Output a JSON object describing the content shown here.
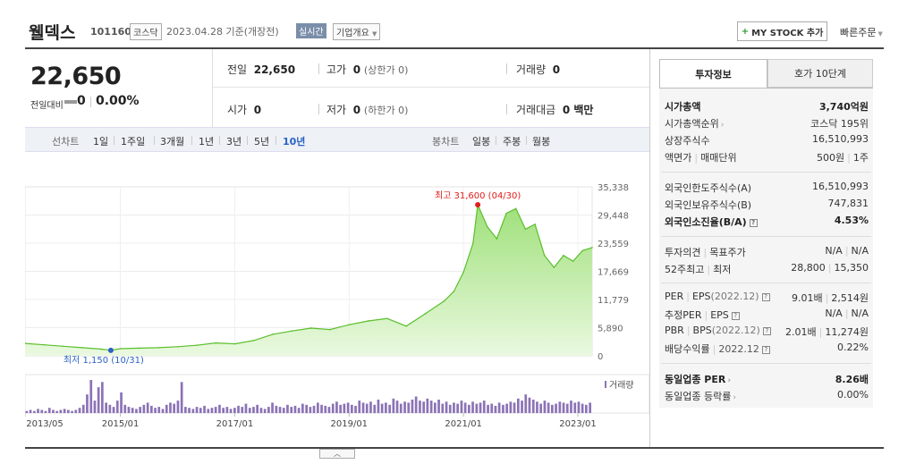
{
  "header": {
    "name": "웰덱스",
    "code": "101160",
    "market": "코스닥",
    "date_text": "2023.04.28  기준(개장전)",
    "realtime_badge": "실시간",
    "company_button": "기업개요",
    "mystock_button": "MY STOCK 추가",
    "quick_order": "빠른주문"
  },
  "quote": {
    "current_price": "22,650",
    "change_label": "전일대비",
    "change_value": "0",
    "change_pct": "0.00%",
    "prev_close_label": "전일",
    "prev_close": "22,650",
    "high_label": "고가",
    "high": "0",
    "upper_limit": "(상한가 0)",
    "volume_label": "거래량",
    "volume": "0",
    "open_label": "시가",
    "open": "0",
    "low_label": "저가",
    "low": "0",
    "lower_limit": "(하한가 0)",
    "amount_label": "거래대금",
    "amount": "0 백만"
  },
  "toolbar": {
    "line_label": "선차트",
    "periods": [
      "1일",
      "1주일",
      "3개월",
      "1년",
      "3년",
      "5년",
      "10년"
    ],
    "active_period": "10년",
    "candle_label": "봉차트",
    "candles": [
      "일봉",
      "주봉",
      "월봉"
    ]
  },
  "tabs": {
    "invest": "투자정보",
    "hoga": "호가 10단계"
  },
  "invest_info": {
    "market_cap_label": "시가총액",
    "market_cap": "3,740억원",
    "rank_label": "시가총액순위",
    "rank": "코스닥 195위",
    "shares_label": "상장주식수",
    "shares": "16,510,993",
    "par_label": "액면가",
    "unit_label": "매매단위",
    "par": "500원",
    "unit": "1주",
    "foreign_limit_label": "외국인한도주식수(A)",
    "foreign_limit": "16,510,993",
    "foreign_hold_label": "외국인보유주식수(B)",
    "foreign_hold": "747,831",
    "foreign_rate_label": "외국인소진율(B/A)",
    "foreign_rate": "4.53%",
    "opinion_label": "투자의견",
    "target_label": "목표주가",
    "opinion": "N/A",
    "target": "N/A",
    "w52_high_label": "52주최고",
    "w52_low_label": "최저",
    "w52_high": "28,800",
    "w52_low": "15,350",
    "per_label": "PER",
    "eps_label": "EPS",
    "per_period": "(2022.12)",
    "per": "9.01배",
    "eps": "2,514원",
    "est_per_label": "추정PER",
    "est_eps_label": "EPS",
    "est_per": "N/A",
    "est_eps": "N/A",
    "pbr_label": "PBR",
    "bps_label": "BPS",
    "pbr_period": "(2022.12)",
    "pbr": "2.01배",
    "bps": "11,274원",
    "div_label": "배당수익률",
    "div_period": "2022.12",
    "div": "0.22%",
    "sector_per_label": "동일업종 PER",
    "sector_per": "8.26배",
    "sector_chg_label": "동일업종 등락률",
    "sector_chg": "0.00%"
  },
  "chart_data": {
    "type": "area",
    "y_ticks": [
      "35,338",
      "29,448",
      "23,559",
      "17,669",
      "11,779",
      "5,890",
      "0"
    ],
    "ylim": [
      0,
      35338
    ],
    "x_ticks": [
      "2013/05",
      "2015/01",
      "2017/01",
      "2019/01",
      "2021/01",
      "2023/01"
    ],
    "x": [
      "2013/05",
      "2013/09",
      "2014/01",
      "2014/05",
      "2014/09",
      "2014/11",
      "2015/01",
      "2015/05",
      "2015/09",
      "2016/01",
      "2016/05",
      "2016/09",
      "2017/01",
      "2017/05",
      "2017/09",
      "2018/01",
      "2018/05",
      "2018/09",
      "2019/01",
      "2019/05",
      "2019/09",
      "2020/01",
      "2020/05",
      "2020/09",
      "2020/11",
      "2021/01",
      "2021/03",
      "2021/04",
      "2021/06",
      "2021/08",
      "2021/10",
      "2021/12",
      "2022/02",
      "2022/04",
      "2022/06",
      "2022/08",
      "2022/10",
      "2022/12",
      "2023/02",
      "2023/04"
    ],
    "values": [
      2600,
      2300,
      2000,
      1700,
      1400,
      1150,
      1500,
      1600,
      1700,
      1900,
      2200,
      2700,
      2500,
      3200,
      4500,
      5200,
      5800,
      5500,
      6500,
      7300,
      7800,
      6200,
      8800,
      11500,
      13500,
      17500,
      23500,
      31600,
      27000,
      24500,
      29800,
      30800,
      26500,
      27500,
      21000,
      18500,
      21000,
      19800,
      22000,
      22650
    ],
    "annotations": {
      "high_label": "최고 31,600 (04/30)",
      "low_label": "최저 1,150 (10/31)"
    },
    "volume_legend": "거래량",
    "volume_bars": [
      2,
      3,
      2,
      4,
      3,
      2,
      5,
      3,
      2,
      3,
      4,
      3,
      2,
      3,
      5,
      8,
      18,
      32,
      12,
      25,
      30,
      10,
      8,
      6,
      12,
      20,
      8,
      6,
      5,
      4,
      6,
      8,
      10,
      7,
      5,
      6,
      4,
      8,
      10,
      9,
      12,
      30,
      6,
      5,
      4,
      6,
      5,
      7,
      4,
      5,
      6,
      8,
      5,
      6,
      4,
      5,
      7,
      6,
      9,
      5,
      6,
      8,
      5,
      4,
      6,
      10,
      7,
      6,
      5,
      8,
      6,
      7,
      5,
      9,
      8,
      6,
      7,
      10,
      8,
      7,
      6,
      9,
      11,
      8,
      9,
      10,
      8,
      7,
      12,
      10,
      9,
      11,
      8,
      13,
      9,
      10,
      8,
      14,
      12,
      9,
      11,
      10,
      13,
      16,
      12,
      11,
      14,
      12,
      10,
      13,
      9,
      11,
      8,
      10,
      9,
      12,
      10,
      8,
      11,
      9,
      10,
      12,
      8,
      9,
      7,
      10,
      8,
      9,
      11,
      10,
      14,
      12,
      18,
      15,
      13,
      11,
      9,
      12,
      10,
      8,
      9,
      11,
      10,
      9,
      12,
      10,
      11,
      9,
      8,
      10
    ]
  }
}
